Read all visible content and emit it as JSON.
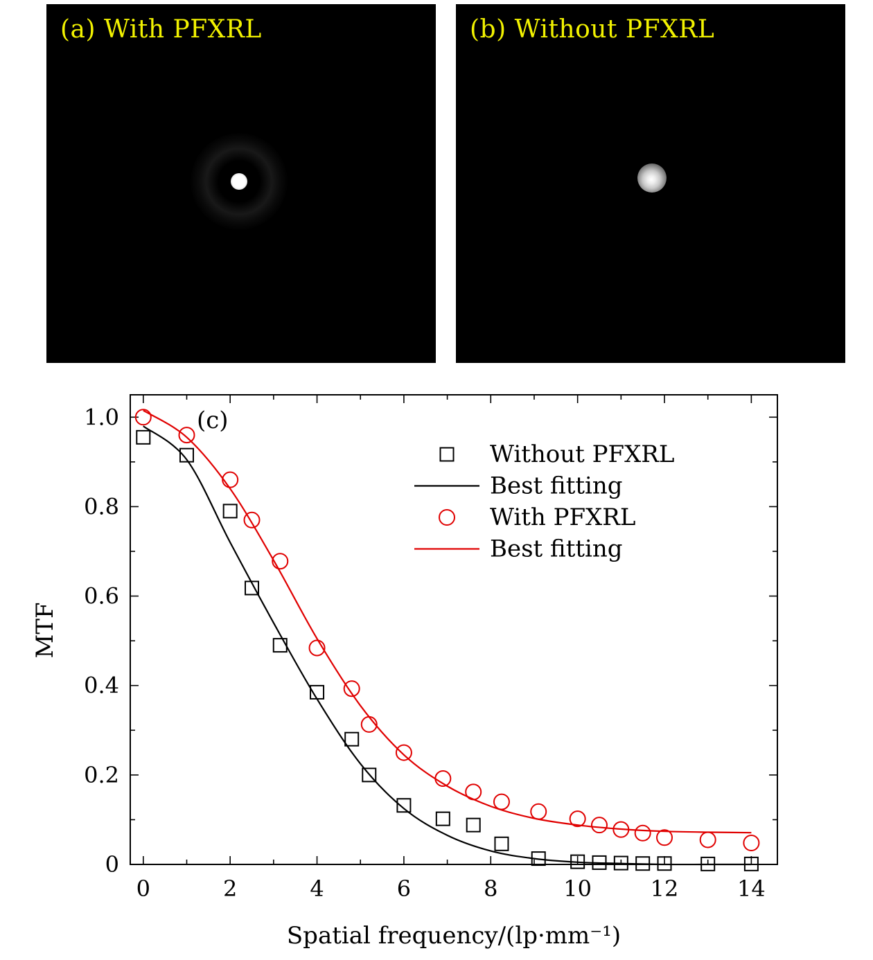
{
  "panels": {
    "a": {
      "label": "(a) With PFXRL"
    },
    "b": {
      "label": "(b) Without PFXRL"
    }
  },
  "chart_data": {
    "type": "scatter",
    "panel_label": "(c)",
    "xlabel": "Spatial frequency/(lp·mm⁻¹)",
    "ylabel": "MTF",
    "xlim": [
      -0.3,
      14.6
    ],
    "ylim": [
      0,
      1.05
    ],
    "xticks": [
      0,
      2,
      4,
      6,
      8,
      10,
      12,
      14
    ],
    "yticks": [
      0,
      0.2,
      0.4,
      0.6,
      0.8,
      1.0
    ],
    "ytick_labels": [
      "0",
      "0.2",
      "0.4",
      "0.6",
      "0.8",
      "1.0"
    ],
    "series": [
      {
        "name": "Without PFXRL",
        "marker": "square",
        "color": "#000000",
        "x": [
          0,
          1,
          2,
          2.5,
          3.15,
          4,
          4.8,
          5.2,
          6,
          6.9,
          7.6,
          8.25,
          9.1,
          10,
          10.5,
          11,
          11.5,
          12,
          13,
          14
        ],
        "y": [
          0.955,
          0.915,
          0.79,
          0.618,
          0.49,
          0.385,
          0.28,
          0.2,
          0.132,
          0.102,
          0.088,
          0.046,
          0.013,
          0.006,
          0.004,
          0.003,
          0.002,
          0.002,
          0.001,
          0.001
        ]
      },
      {
        "name": "Best fitting",
        "marker": "line",
        "color": "#000000",
        "x": [
          0,
          1,
          2,
          3,
          4,
          5,
          6,
          7,
          8,
          9,
          10,
          11,
          12,
          13,
          14
        ],
        "y": [
          0.98,
          0.905,
          0.72,
          0.54,
          0.37,
          0.225,
          0.125,
          0.065,
          0.03,
          0.013,
          0.005,
          0.002,
          0.0,
          0.0,
          0.0
        ]
      },
      {
        "name": "With PFXRL",
        "marker": "circle",
        "color": "#e00000",
        "x": [
          0,
          1,
          2,
          2.5,
          3.15,
          4,
          4.8,
          5.2,
          6,
          6.9,
          7.6,
          8.25,
          9.1,
          10,
          10.5,
          11,
          11.5,
          12,
          13,
          14
        ],
        "y": [
          1.0,
          0.96,
          0.86,
          0.77,
          0.678,
          0.484,
          0.393,
          0.313,
          0.25,
          0.192,
          0.162,
          0.14,
          0.118,
          0.102,
          0.088,
          0.078,
          0.07,
          0.06,
          0.055,
          0.048
        ]
      },
      {
        "name": "Best fitting",
        "marker": "line",
        "color": "#e00000",
        "x": [
          0,
          1,
          2,
          3,
          4,
          5,
          6,
          7,
          8,
          9,
          10,
          11,
          12,
          13,
          14
        ],
        "y": [
          1.015,
          0.955,
          0.84,
          0.68,
          0.505,
          0.355,
          0.245,
          0.175,
          0.13,
          0.103,
          0.088,
          0.079,
          0.074,
          0.072,
          0.071
        ]
      }
    ],
    "legend_position": "top-right"
  }
}
